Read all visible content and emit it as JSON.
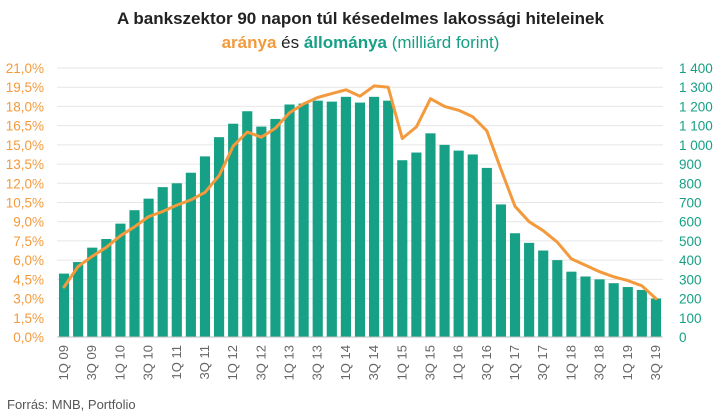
{
  "header": {
    "title_line1": "A bankszektor 90 napon túl késedelmes lakossági hiteleinek",
    "title_part_aranya": "aránya",
    "title_part_es": "és",
    "title_part_allomanya": "állománya",
    "title_part_unit": "(milliárd forint)"
  },
  "footer": {
    "source": "Forrás: MNB, Portfolio"
  },
  "colors": {
    "bar": "#16a085",
    "line": "#f39a3c",
    "left_axis": "#f39a3c",
    "right_axis": "#16a085",
    "grid": "#e6e6e6"
  },
  "chart_data": {
    "type": "bar+line",
    "categories": [
      "1Q 09",
      "2Q 09",
      "3Q 09",
      "4Q 09",
      "1Q 10",
      "2Q 10",
      "3Q 10",
      "4Q 10",
      "1Q 11",
      "2Q 11",
      "3Q 11",
      "4Q 11",
      "1Q 12",
      "2Q 12",
      "3Q 12",
      "4Q 12",
      "1Q 13",
      "2Q 13",
      "3Q 13",
      "4Q 13",
      "1Q 14",
      "2Q 14",
      "3Q 14",
      "4Q 14",
      "1Q 15",
      "2Q 15",
      "3Q 15",
      "4Q 15",
      "1Q 16",
      "2Q 16",
      "3Q 16",
      "4Q 16",
      "1Q 17",
      "2Q 17",
      "3Q 17",
      "4Q 17",
      "1Q 18",
      "2Q 18",
      "3Q 18",
      "4Q 18",
      "1Q 19",
      "2Q 19",
      "3Q 19"
    ],
    "x_tick_labels": [
      "1Q 09",
      "3Q 09",
      "1Q 10",
      "3Q 10",
      "1Q 11",
      "3Q 11",
      "1Q 12",
      "3Q 12",
      "1Q 13",
      "3Q 13",
      "1Q 14",
      "3Q 14",
      "1Q 15",
      "3Q 15",
      "1Q 16",
      "3Q 16",
      "1Q 17",
      "3Q 17",
      "1Q 18",
      "3Q 18",
      "1Q 19",
      "3Q 19"
    ],
    "bar_series": {
      "values": [
        330,
        390,
        465,
        510,
        590,
        660,
        720,
        780,
        800,
        855,
        940,
        1040,
        1110,
        1175,
        1095,
        1135,
        1210,
        1215,
        1230,
        1225,
        1250,
        1220,
        1250,
        1230,
        920,
        960,
        1060,
        1000,
        970,
        950,
        880,
        690,
        540,
        490,
        450,
        400,
        340,
        315,
        300,
        280,
        260,
        245,
        200
      ],
      "axis": "right"
    },
    "line_series": {
      "values": [
        3.9,
        5.5,
        6.3,
        7.0,
        7.9,
        8.6,
        9.4,
        9.8,
        10.3,
        10.7,
        11.3,
        12.6,
        14.9,
        16.0,
        15.6,
        16.3,
        17.5,
        18.2,
        18.7,
        19.0,
        19.3,
        18.8,
        19.6,
        19.5,
        15.5,
        16.4,
        18.6,
        18.0,
        17.7,
        17.2,
        16.1,
        13.1,
        10.2,
        9.0,
        8.3,
        7.4,
        6.1,
        5.6,
        5.1,
        4.7,
        4.4,
        4.0,
        3.0
      ],
      "axis": "left"
    },
    "left_axis": {
      "ylim": [
        0,
        21
      ],
      "tick_labels": [
        "0,0%",
        "1,5%",
        "3,0%",
        "4,5%",
        "6,0%",
        "7,5%",
        "9,0%",
        "10,5%",
        "12,0%",
        "13,5%",
        "15,0%",
        "16,5%",
        "18,0%",
        "19,5%",
        "21,0%"
      ]
    },
    "right_axis": {
      "ylim": [
        0,
        1400
      ],
      "tick_labels": [
        "0",
        "100",
        "200",
        "300",
        "400",
        "500",
        "600",
        "700",
        "800",
        "900",
        "1 000",
        "1 100",
        "1 200",
        "1 300",
        "1 400"
      ]
    },
    "grid": true,
    "legend": "none"
  }
}
